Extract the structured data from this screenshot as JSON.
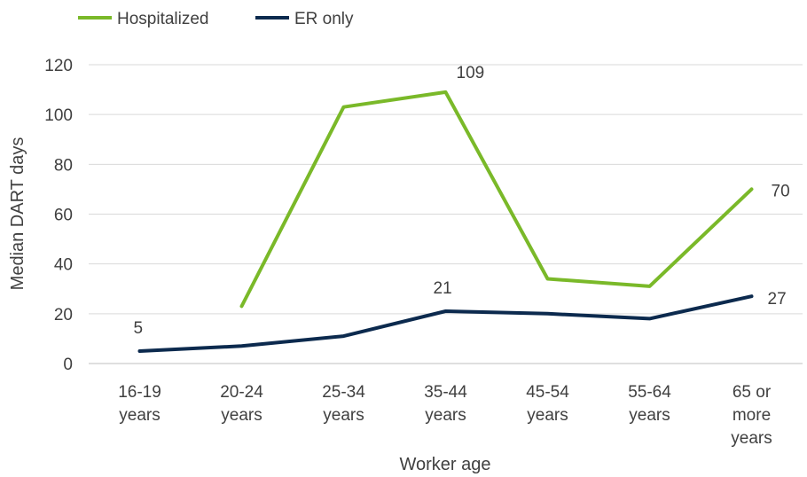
{
  "chart_data": {
    "type": "line",
    "title": "",
    "xlabel": "Worker age",
    "ylabel": "Median DART days",
    "ylim": [
      0,
      120
    ],
    "yticks": [
      0,
      20,
      40,
      60,
      80,
      100,
      120
    ],
    "grid": true,
    "legend_position": "top-left",
    "categories": [
      [
        "16-19",
        "years"
      ],
      [
        "20-24",
        "years"
      ],
      [
        "25-34",
        "years"
      ],
      [
        "35-44",
        "years"
      ],
      [
        "45-54",
        "years"
      ],
      [
        "55-64",
        "years"
      ],
      [
        "65 or",
        "more",
        "years"
      ]
    ],
    "series": [
      {
        "name": "Hospitalized",
        "color": "#7ab929",
        "values": [
          null,
          23,
          103,
          109,
          34,
          31,
          70
        ],
        "data_labels": [
          null,
          null,
          null,
          "109",
          null,
          null,
          "70"
        ]
      },
      {
        "name": "ER only",
        "color": "#0c2a4e",
        "values": [
          5,
          7,
          11,
          21,
          20,
          18,
          27
        ],
        "data_labels": [
          "5",
          null,
          null,
          "21",
          null,
          null,
          "27"
        ]
      }
    ]
  }
}
